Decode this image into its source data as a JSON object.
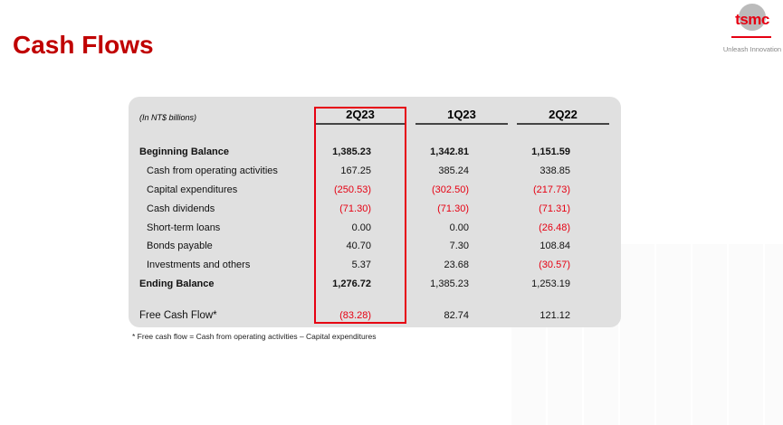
{
  "title": "Cash Flows",
  "logo": {
    "word": "tsmc",
    "tagline": "Unleash Innovation"
  },
  "table": {
    "unit": "(In NT$ billions)",
    "columns": [
      "2Q23",
      "1Q23",
      "2Q22"
    ],
    "highlighted_column": "2Q23",
    "rows": [
      {
        "label": "Beginning Balance",
        "values": [
          "1,385.23",
          "1,342.81",
          "1,151.59"
        ]
      },
      {
        "label": "Cash from operating activities",
        "values": [
          "167.25",
          "385.24",
          "338.85"
        ]
      },
      {
        "label": "Capital expenditures",
        "values": [
          "(250.53)",
          "(302.50)",
          "(217.73)"
        ]
      },
      {
        "label": "Cash dividends",
        "values": [
          "(71.30)",
          "(71.30)",
          "(71.31)"
        ]
      },
      {
        "label": "Short-term loans",
        "values": [
          "0.00",
          "0.00",
          "(26.48)"
        ]
      },
      {
        "label": "Bonds payable",
        "values": [
          "40.70",
          "7.30",
          "108.84"
        ]
      },
      {
        "label": "Investments and others",
        "values": [
          "5.37",
          "23.68",
          "(30.57)"
        ]
      },
      {
        "label": "Ending Balance",
        "values": [
          "1,276.72",
          "1,385.23",
          "1,253.19"
        ]
      },
      {
        "label": "Free Cash Flow*",
        "values": [
          "(83.28)",
          "82.74",
          "121.12"
        ]
      }
    ]
  },
  "footnote": "* Free cash flow  = Cash from operating activities  – Capital expenditures",
  "colors": {
    "title": "#c00000",
    "negative": "#e60012",
    "panel": "#e0e0e0"
  }
}
